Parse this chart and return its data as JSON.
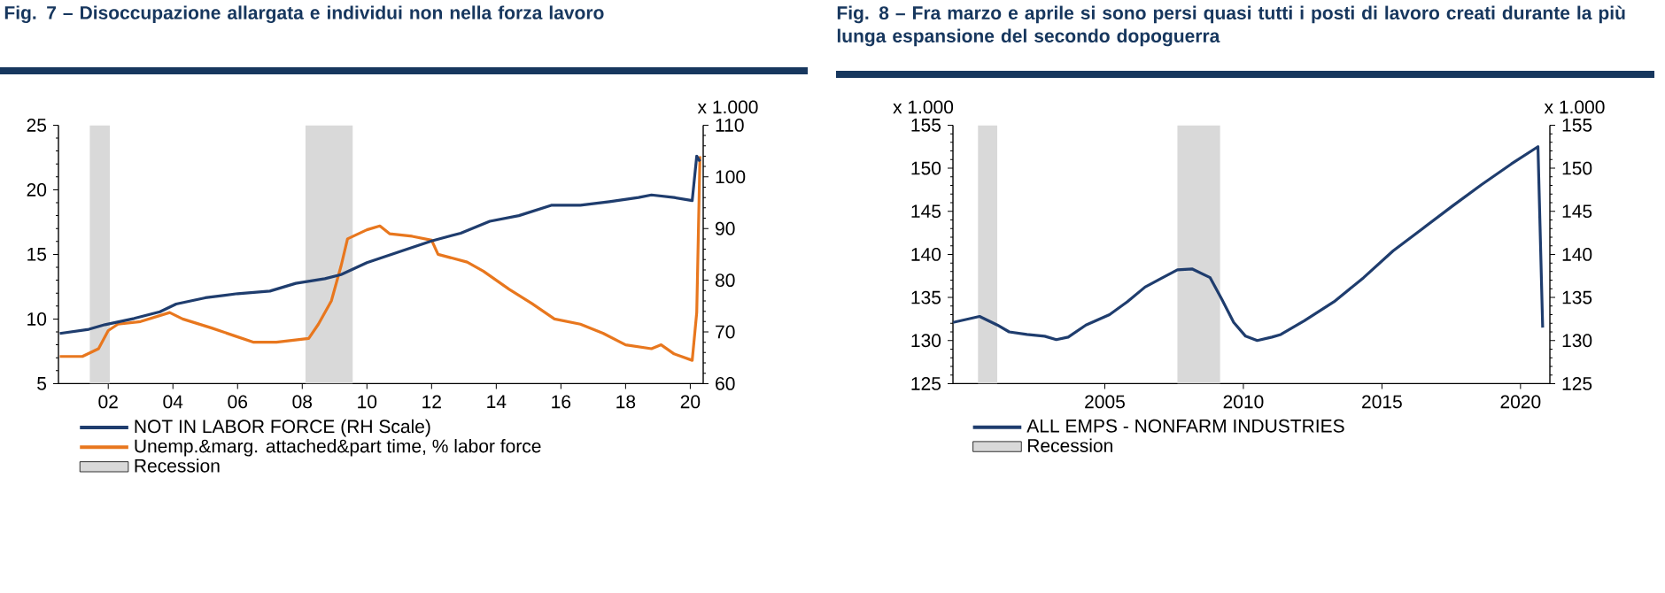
{
  "chart_data": [
    {
      "type": "line",
      "title": "Fig. 7 – Disoccupazione allargata e individui non nella forza lavoro",
      "y2label": "x 1.000",
      "xlim": [
        2000.46,
        2020.4
      ],
      "xticks": [
        {
          "value": 2002,
          "label": "02"
        },
        {
          "value": 2004,
          "label": "04"
        },
        {
          "value": 2006,
          "label": "06"
        },
        {
          "value": 2008,
          "label": "08"
        },
        {
          "value": 2010,
          "label": "10"
        },
        {
          "value": 2012,
          "label": "12"
        },
        {
          "value": 2014,
          "label": "14"
        },
        {
          "value": 2016,
          "label": "16"
        },
        {
          "value": 2018,
          "label": "18"
        },
        {
          "value": 2020,
          "label": "20"
        }
      ],
      "ylim": [
        5,
        25
      ],
      "yticks": [
        5,
        10,
        15,
        20,
        25
      ],
      "y2lim": [
        60,
        110
      ],
      "y2ticks": [
        60,
        70,
        80,
        90,
        100,
        110
      ],
      "legend": "bottom",
      "series": [
        {
          "name": "NOT IN LABOR FORCE (RH Scale)",
          "color": "#1f3d6e",
          "axis": "y2",
          "x": [
            2000.5,
            2001.4,
            2001.9,
            2002.8,
            2003.6,
            2004.1,
            2005.0,
            2006.0,
            2007.0,
            2007.8,
            2008.7,
            2009.2,
            2010.0,
            2011.1,
            2012.0,
            2012.9,
            2013.8,
            2014.7,
            2015.7,
            2016.6,
            2017.5,
            2018.4,
            2018.8,
            2019.5,
            2020.06,
            2020.2,
            2020.3
          ],
          "values": [
            69.7,
            70.5,
            71.4,
            72.6,
            73.9,
            75.4,
            76.6,
            77.4,
            77.9,
            79.4,
            80.3,
            81.1,
            83.4,
            85.7,
            87.6,
            89.1,
            91.4,
            92.5,
            94.5,
            94.5,
            95.2,
            96.0,
            96.5,
            96.0,
            95.4,
            104,
            103
          ]
        },
        {
          "name": "Unemp.&marg. attached&part time, % labor force",
          "color": "#e8771e",
          "x": [
            2000.5,
            2001.2,
            2001.7,
            2002.0,
            2002.3,
            2003.0,
            2003.9,
            2004.3,
            2005.2,
            2005.9,
            2006.5,
            2007.2,
            2008.2,
            2008.5,
            2008.9,
            2009.2,
            2009.4,
            2010.0,
            2010.4,
            2010.7,
            2011.4,
            2012.0,
            2012.2,
            2013.1,
            2013.6,
            2014.4,
            2015.1,
            2015.8,
            2016.6,
            2017.3,
            2018.0,
            2018.8,
            2019.1,
            2019.5,
            2020.06,
            2020.2,
            2020.3
          ],
          "values": [
            7.1,
            7.1,
            7.7,
            9.1,
            9.6,
            9.8,
            10.5,
            10.0,
            9.3,
            8.7,
            8.2,
            8.2,
            8.5,
            9.6,
            11.4,
            14.1,
            16.2,
            16.9,
            17.2,
            16.6,
            16.4,
            16.1,
            15.0,
            14.4,
            13.7,
            12.3,
            11.2,
            10.0,
            9.6,
            8.9,
            8.0,
            7.7,
            8.0,
            7.3,
            6.8,
            10.5,
            22.6
          ]
        }
      ],
      "bands": [
        {
          "axis": "x",
          "from": 2001.43,
          "to": 2002.05,
          "label": "Recession",
          "color": "#d9d9d9"
        },
        {
          "axis": "x",
          "from": 2008.1,
          "to": 2009.56,
          "color": "#d9d9d9"
        }
      ]
    },
    {
      "type": "line",
      "title": "Fig. 8 – Fra marzo e aprile si sono persi quasi tutti i posti di lavoro creati durante la più lunga espansione del secondo dopoguerra",
      "ylabel": "x 1.000",
      "y2label": "x 1.000",
      "xlim": [
        1999.52,
        2021.06
      ],
      "xticks": [
        2005,
        2010,
        2015,
        2020
      ],
      "ylim": [
        125,
        155
      ],
      "yticks": [
        125,
        130,
        135,
        140,
        145,
        150,
        155
      ],
      "y2lim": [
        125,
        155
      ],
      "y2ticks": [
        125,
        130,
        135,
        140,
        145,
        150,
        155
      ],
      "legend": "bottom",
      "series": [
        {
          "name": "ALL EMPS - NONFARM INDUSTRIES",
          "color": "#1f3d6e",
          "x": [
            1999.52,
            2000.48,
            2001.12,
            2001.55,
            2002.19,
            2002.83,
            2003.25,
            2003.68,
            2004.32,
            2005.17,
            2005.81,
            2006.45,
            2007.09,
            2007.62,
            2008.16,
            2008.8,
            2009.22,
            2009.65,
            2010.08,
            2010.5,
            2011.03,
            2011.35,
            2012.2,
            2013.27,
            2014.34,
            2015.4,
            2016.47,
            2017.54,
            2018.6,
            2019.67,
            2020.63,
            2020.8
          ],
          "values": [
            132.1,
            132.8,
            131.8,
            131.0,
            130.7,
            130.5,
            130.1,
            130.4,
            131.8,
            133.0,
            134.5,
            136.2,
            137.3,
            138.2,
            138.3,
            137.3,
            134.8,
            132.1,
            130.5,
            130.0,
            130.4,
            130.7,
            132.3,
            134.5,
            137.3,
            140.4,
            143.0,
            145.6,
            148.1,
            150.5,
            152.5,
            131.5
          ]
        }
      ],
      "bands": [
        {
          "axis": "x",
          "from": 2000.42,
          "to": 2001.12,
          "label": "Recession",
          "color": "#d9d9d9"
        },
        {
          "axis": "x",
          "from": 2007.62,
          "to": 2009.16,
          "color": "#d9d9d9"
        }
      ]
    }
  ]
}
